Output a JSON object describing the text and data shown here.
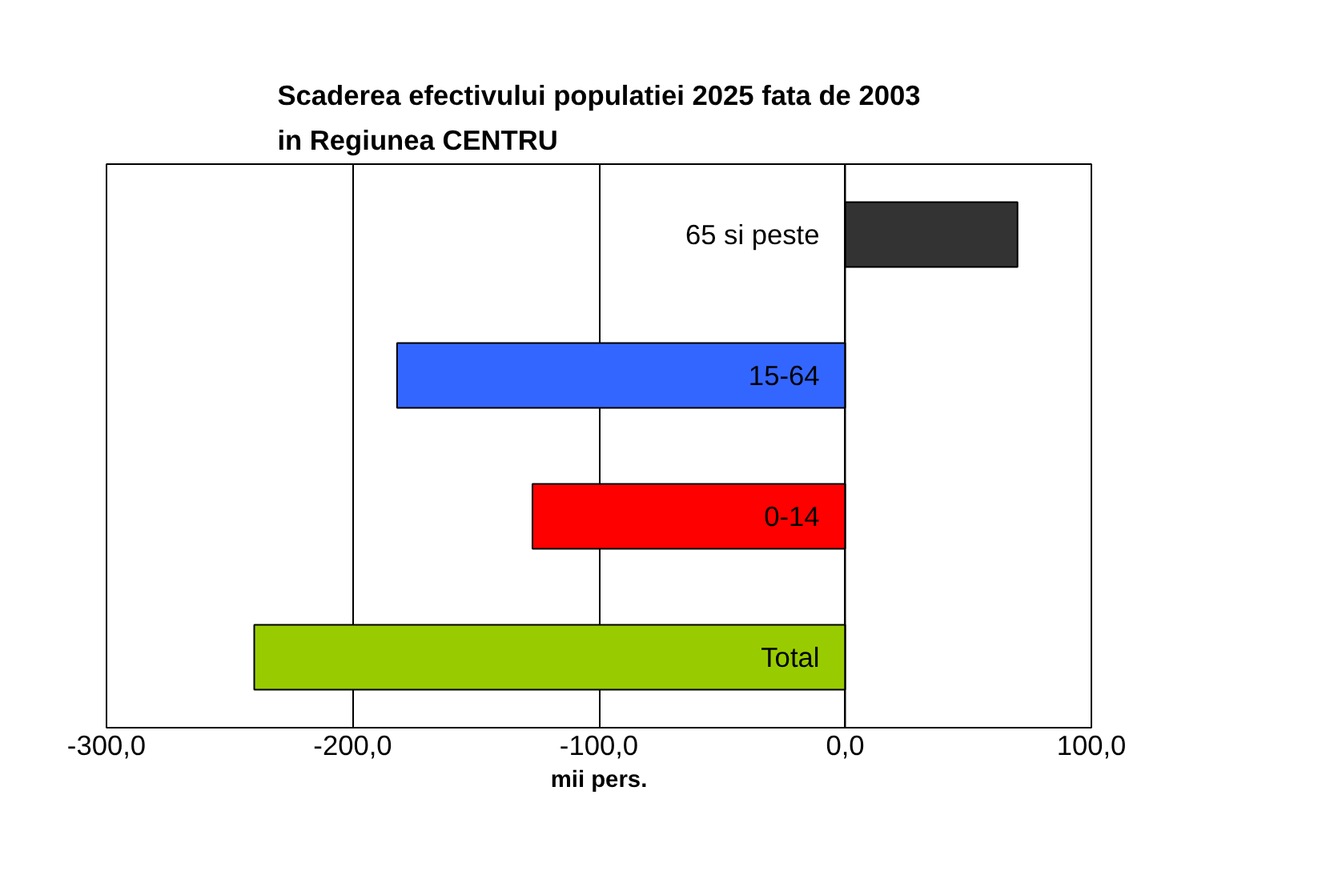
{
  "chart_data": {
    "type": "bar",
    "orientation": "horizontal",
    "title": "Scaderea efectivului populatiei 2025 fata de 2003 in Regiunea CENTRU",
    "xlabel": "mii pers.",
    "categories": [
      "65 si peste",
      "15-64",
      "0-14",
      "Total"
    ],
    "values": [
      70,
      -182,
      -127,
      -240
    ],
    "colors": [
      "#333333",
      "#3366ff",
      "#ff0000",
      "#99cc00"
    ],
    "xlim": [
      -300,
      100
    ],
    "xticks": [
      {
        "value": -300,
        "label": "-300,0"
      },
      {
        "value": -200,
        "label": "-200,0"
      },
      {
        "value": -100,
        "label": "-100,0"
      },
      {
        "value": 0,
        "label": "0,0"
      },
      {
        "value": 100,
        "label": "100,0"
      }
    ],
    "grid": "x"
  }
}
